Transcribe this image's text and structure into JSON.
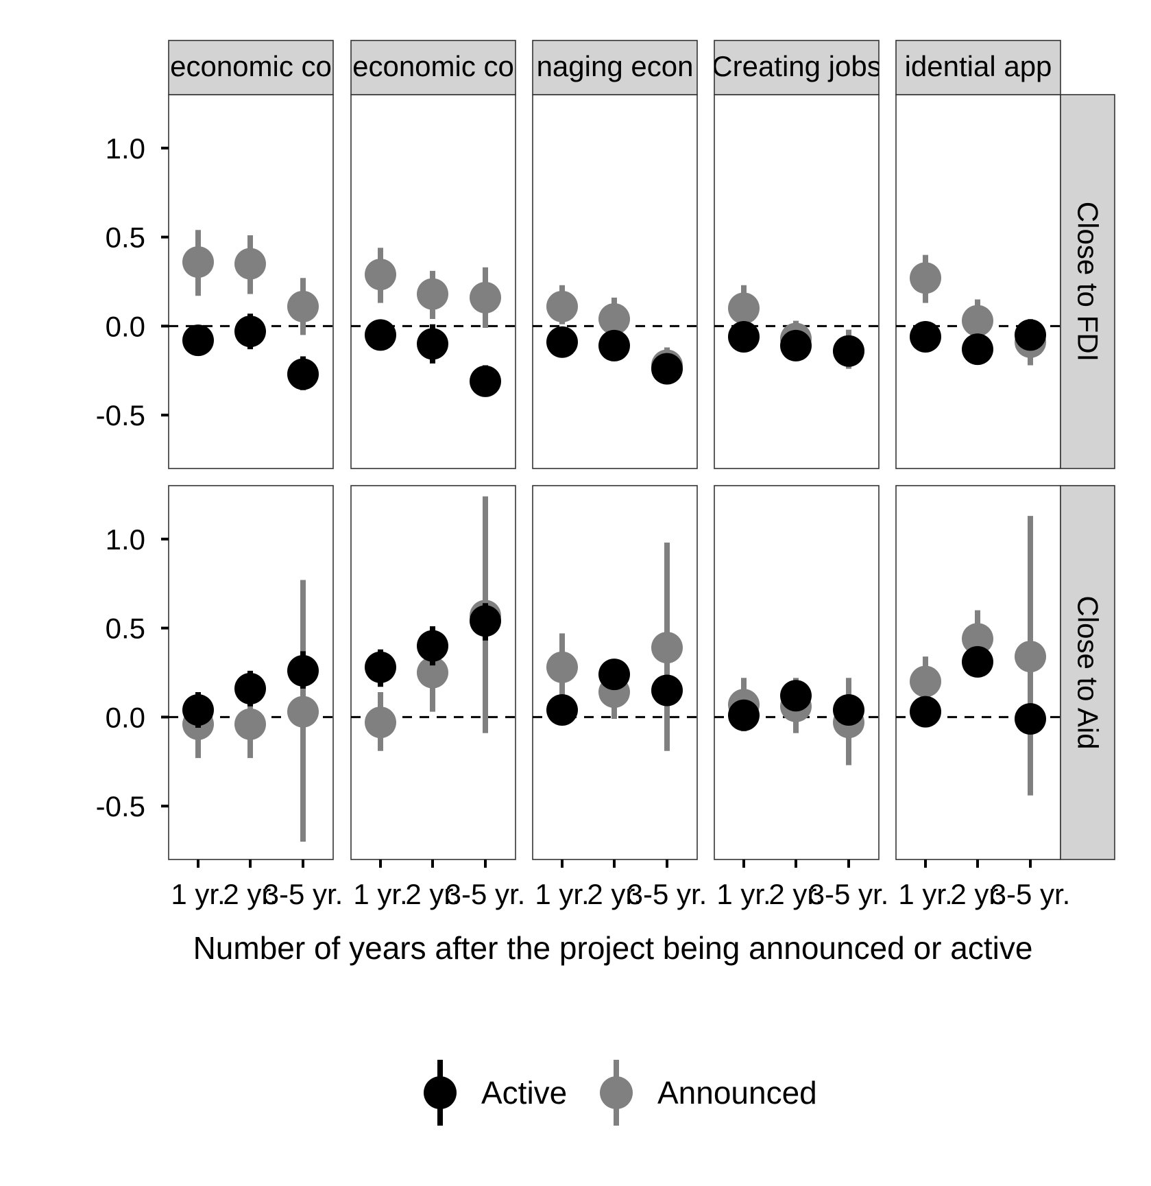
{
  "chart_data": {
    "type": "scatter",
    "subtype": "point-range facet grid",
    "columns": [
      "economic co",
      "economic co",
      "naging econ",
      "Creating jobs",
      "idential app"
    ],
    "rows": [
      "Close to FDI",
      "Close to Aid"
    ],
    "categories": [
      "1 yr.",
      "2 yr.",
      "3-5 yr."
    ],
    "xlabel": "Number of years after the project being announced or active",
    "ylabel": "",
    "ylim": [
      -0.8,
      1.3
    ],
    "yticks": [
      -0.5,
      0.0,
      0.5,
      1.0
    ],
    "ytick_labels": [
      "-0.5",
      "0.0",
      "0.5",
      "1.0"
    ],
    "reference_line": 0.0,
    "grid": false,
    "legend": {
      "position": "bottom",
      "entries": [
        {
          "name": "Active",
          "color": "#000000"
        },
        {
          "name": "Announced",
          "color": "#808080"
        }
      ]
    },
    "series": [
      {
        "name": "Announced",
        "color": "#808080",
        "panels": [
          [
            {
              "y": [
                0.36,
                0.35,
                0.11
              ],
              "lo": [
                0.17,
                0.18,
                -0.05
              ],
              "hi": [
                0.54,
                0.51,
                0.27
              ]
            },
            {
              "y": [
                0.29,
                0.18,
                0.16
              ],
              "lo": [
                0.13,
                0.04,
                -0.01
              ],
              "hi": [
                0.44,
                0.31,
                0.33
              ]
            },
            {
              "y": [
                0.11,
                0.04,
                -0.22
              ],
              "lo": [
                0.01,
                -0.07,
                -0.31
              ],
              "hi": [
                0.23,
                0.16,
                -0.12
              ]
            },
            {
              "y": [
                0.1,
                -0.07,
                -0.14
              ],
              "lo": [
                -0.02,
                -0.14,
                -0.24
              ],
              "hi": [
                0.23,
                0.03,
                -0.02
              ]
            },
            {
              "y": [
                0.27,
                0.03,
                -0.09
              ],
              "lo": [
                0.13,
                -0.08,
                -0.22
              ],
              "hi": [
                0.4,
                0.15,
                0.04
              ]
            }
          ],
          [
            {
              "y": [
                -0.04,
                -0.04,
                0.03
              ],
              "lo": [
                -0.23,
                -0.23,
                -0.7
              ],
              "hi": [
                0.14,
                0.14,
                0.77
              ]
            },
            {
              "y": [
                -0.03,
                0.25,
                0.57
              ],
              "lo": [
                -0.19,
                0.03,
                -0.09
              ],
              "hi": [
                0.14,
                0.47,
                1.24
              ]
            },
            {
              "y": [
                0.28,
                0.14,
                0.39
              ],
              "lo": [
                0.1,
                -0.01,
                -0.19
              ],
              "hi": [
                0.47,
                0.29,
                0.98
              ]
            },
            {
              "y": [
                0.07,
                0.06,
                -0.03
              ],
              "lo": [
                -0.08,
                -0.09,
                -0.27
              ],
              "hi": [
                0.22,
                0.22,
                0.22
              ]
            },
            {
              "y": [
                0.2,
                0.44,
                0.34
              ],
              "lo": [
                0.06,
                0.28,
                -0.44
              ],
              "hi": [
                0.34,
                0.6,
                1.13
              ]
            }
          ]
        ]
      },
      {
        "name": "Active",
        "color": "#000000",
        "panels": [
          [
            {
              "y": [
                -0.08,
                -0.03,
                -0.27
              ],
              "lo": [
                -0.13,
                -0.13,
                -0.36
              ],
              "hi": [
                -0.03,
                0.07,
                -0.17
              ]
            },
            {
              "y": [
                -0.05,
                -0.1,
                -0.31
              ],
              "lo": [
                -0.09,
                -0.21,
                -0.39
              ],
              "hi": [
                -0.01,
                0.01,
                -0.22
              ]
            },
            {
              "y": [
                -0.09,
                -0.11,
                -0.24
              ],
              "lo": [
                -0.13,
                -0.16,
                -0.32
              ],
              "hi": [
                -0.05,
                -0.06,
                -0.16
              ]
            },
            {
              "y": [
                -0.06,
                -0.11,
                -0.14
              ],
              "lo": [
                -0.1,
                -0.15,
                -0.2
              ],
              "hi": [
                -0.02,
                -0.07,
                -0.08
              ]
            },
            {
              "y": [
                -0.06,
                -0.13,
                -0.05
              ],
              "lo": [
                -0.1,
                -0.17,
                -0.09
              ],
              "hi": [
                -0.02,
                -0.09,
                -0.01
              ]
            }
          ],
          [
            {
              "y": [
                0.04,
                0.16,
                0.26
              ],
              "lo": [
                -0.06,
                0.06,
                0.16
              ],
              "hi": [
                0.14,
                0.26,
                0.37
              ]
            },
            {
              "y": [
                0.28,
                0.4,
                0.54
              ],
              "lo": [
                0.17,
                0.29,
                0.43
              ],
              "hi": [
                0.38,
                0.51,
                0.64
              ]
            },
            {
              "y": [
                0.04,
                0.24,
                0.15
              ],
              "lo": [
                0.0,
                0.2,
                0.11
              ],
              "hi": [
                0.08,
                0.28,
                0.19
              ]
            },
            {
              "y": [
                0.01,
                0.12,
                0.04
              ],
              "lo": [
                -0.03,
                0.08,
                0.0
              ],
              "hi": [
                0.05,
                0.16,
                0.08
              ]
            },
            {
              "y": [
                0.03,
                0.31,
                -0.01
              ],
              "lo": [
                -0.01,
                0.27,
                -0.05
              ],
              "hi": [
                0.07,
                0.35,
                0.03
              ]
            }
          ]
        ]
      }
    ]
  }
}
